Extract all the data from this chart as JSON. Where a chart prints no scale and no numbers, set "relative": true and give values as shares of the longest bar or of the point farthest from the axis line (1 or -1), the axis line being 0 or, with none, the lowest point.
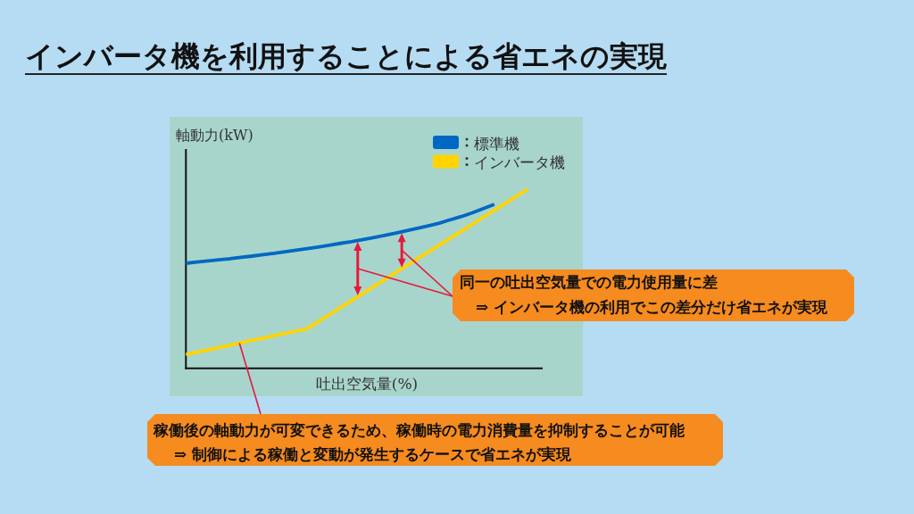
{
  "chart_data": {
    "type": "line",
    "title": "インバータ機を利用することによる省エネの実現",
    "xlabel": "吐出空気量(%)",
    "ylabel": "軸動力(kW)",
    "relative": true,
    "legend": "top right",
    "line_style": "solid",
    "categories": [
      null,
      null,
      null,
      null,
      null,
      null,
      null,
      null,
      null,
      null,
      null,
      null,
      null,
      null,
      null,
      null,
      null,
      null,
      null,
      null,
      null,
      null,
      null,
      null,
      null,
      null,
      null,
      null,
      null,
      null,
      null,
      null
    ],
    "series": [
      {
        "name": "標準機",
        "color": "#0068c2",
        "values": [
          0.587,
          0.594,
          0.6,
          0.606,
          0.612,
          0.62,
          0.627,
          0.635,
          0.642,
          0.651,
          0.66,
          0.669,
          0.678,
          0.688,
          0.698,
          0.707,
          0.718,
          0.73,
          0.742,
          0.755,
          0.768,
          0.782,
          0.796,
          0.811,
          0.83,
          0.848,
          0.869,
          0.893,
          0.916,
          null,
          null,
          null
        ]
      },
      {
        "name": "インバータ機",
        "color": "#ffd400",
        "values": [
          0.077,
          0.09,
          0.103,
          0.116,
          0.129,
          0.143,
          0.156,
          0.169,
          0.182,
          0.195,
          0.208,
          0.221,
          0.26,
          0.299,
          0.338,
          0.377,
          0.416,
          0.455,
          0.494,
          0.533,
          0.572,
          0.611,
          0.65,
          0.688,
          0.727,
          0.766,
          0.805,
          0.844,
          0.883,
          0.922,
          0.961,
          1.0
        ]
      }
    ],
    "annotations": [
      "同一の吐出空気量での電力使用量に差",
      "⇒ インバータ機の利用でこの差分だけ省エネが実現",
      "稼働後の軸動力が可変できるため、稼働時の電力消費量を抑制することが可能",
      "⇒ 制御による稼働と変動が発生するケースで省エネが実現"
    ]
  }
}
